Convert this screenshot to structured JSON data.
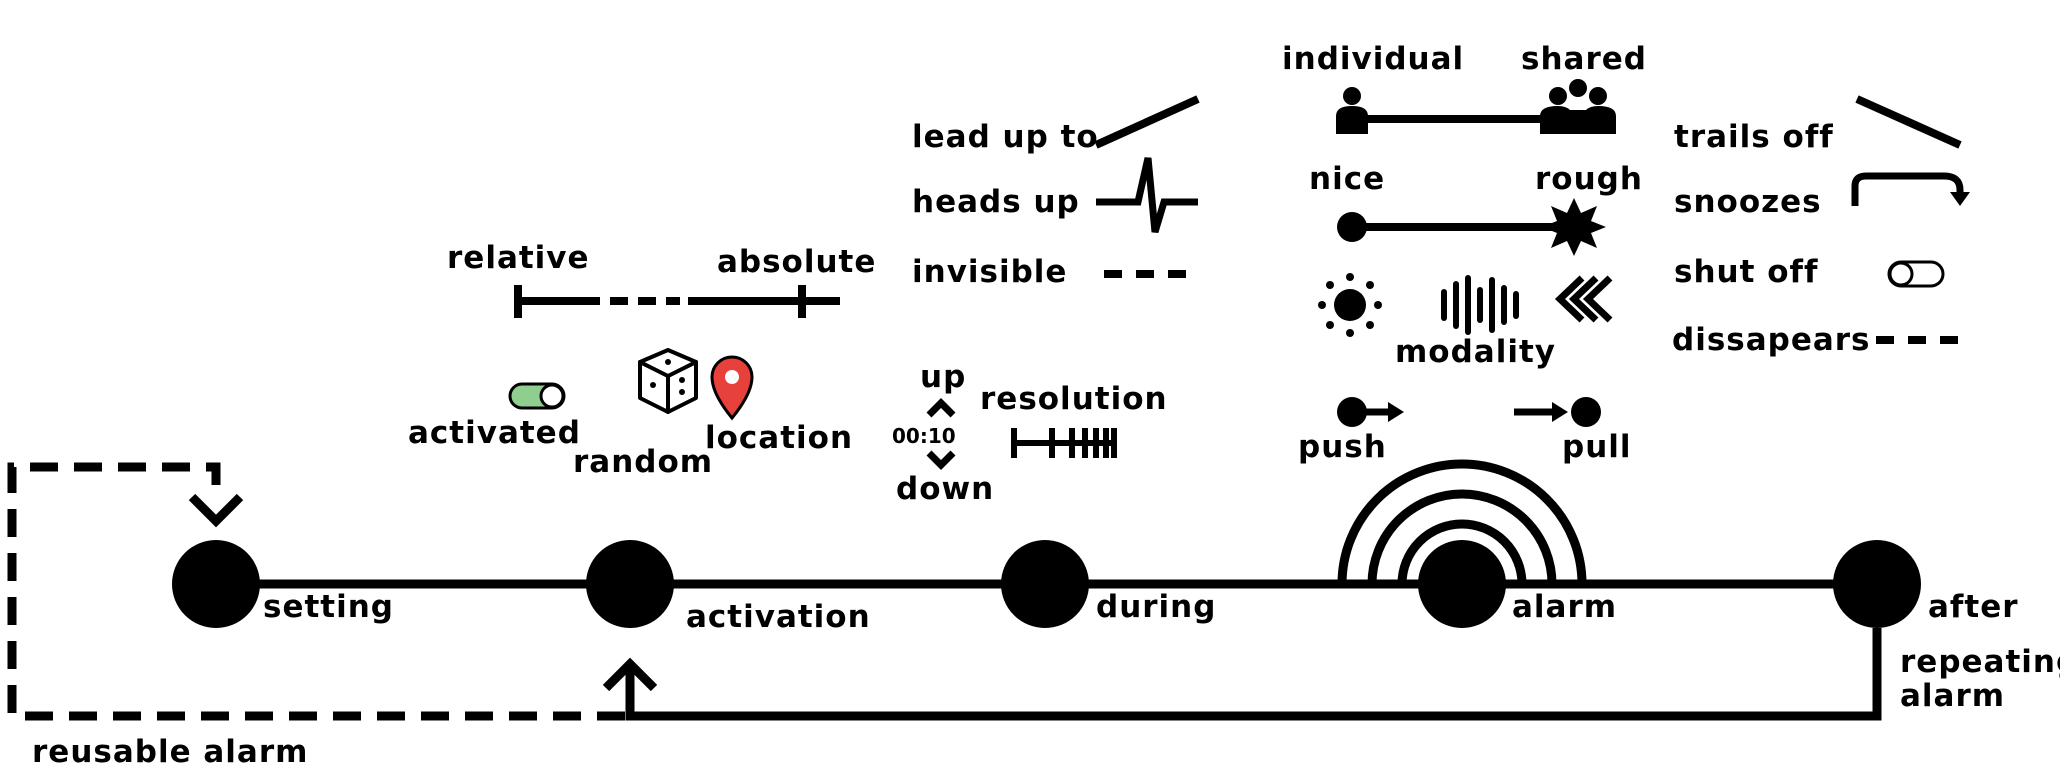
{
  "stages": {
    "setting": "setting",
    "activation": "activation",
    "during": "during",
    "alarm": "alarm",
    "after": "after"
  },
  "loops": {
    "reusable": "reusable alarm",
    "repeating_line1": "repeating",
    "repeating_line2": "alarm"
  },
  "setting_legend": {
    "relative": "relative",
    "absolute": "absolute",
    "activated": "activated",
    "random": "random",
    "location": "location"
  },
  "during_legend": {
    "lead_up_to": "lead up to",
    "heads_up": "heads up",
    "invisible": "invisible",
    "up": "up",
    "down": "down",
    "timer": "00:10",
    "resolution": "resolution"
  },
  "alarm_legend": {
    "individual": "individual",
    "shared": "shared",
    "nice": "nice",
    "rough": "rough",
    "modality": "modality",
    "push": "push",
    "pull": "pull"
  },
  "after_legend": {
    "trails_off": "trails off",
    "snoozes": "snoozes",
    "shut_off": "shut off",
    "dissapears": "dissapears"
  },
  "colors": {
    "ink": "#000000",
    "toggle_green": "#8fce8f",
    "location_red": "#e8403a"
  }
}
